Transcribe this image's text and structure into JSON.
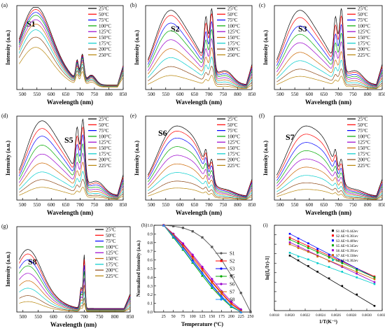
{
  "figure": {
    "panels": [
      {
        "letter": "(a)",
        "name": "S1",
        "temps": [
          "25°C",
          "50°C",
          "75°C",
          "100°C",
          "125°C",
          "150°C",
          "175°C",
          "200°C",
          "250°C"
        ]
      },
      {
        "letter": "(b)",
        "name": "S2",
        "temps": [
          "25°C",
          "50°C",
          "75°C",
          "100°C",
          "125°C",
          "150°C",
          "175°C",
          "200°C",
          "250°C"
        ]
      },
      {
        "letter": "(c)",
        "name": "S3",
        "temps": [
          "25°C",
          "50°C",
          "75°C",
          "100°C",
          "125°C",
          "150°C",
          "175°C",
          "200°C",
          "225°C"
        ]
      },
      {
        "letter": "(d)",
        "name": "S5",
        "temps": [
          "25°C",
          "50°C",
          "75°C",
          "100°C",
          "125°C",
          "150°C",
          "175°C",
          "200°C",
          "225°C"
        ]
      },
      {
        "letter": "(e)",
        "name": "S6",
        "temps": [
          "25°C",
          "50°C",
          "75°C",
          "100°C",
          "125°C",
          "150°C",
          "175°C",
          "200°C",
          "225°C"
        ]
      },
      {
        "letter": "(f)",
        "name": "S7",
        "temps": [
          "25°C",
          "50°C",
          "75°C",
          "100°C",
          "125°C",
          "150°C",
          "175°C",
          "200°C",
          "225°C"
        ]
      },
      {
        "letter": "(g)",
        "name": "S8",
        "temps": [
          "25°C",
          "50°C",
          "75°C",
          "100°C",
          "125°C",
          "150°C",
          "175°C",
          "200°C",
          "225°C"
        ]
      }
    ],
    "temp_colors": [
      "#000000",
      "#ff0000",
      "#0000ff",
      "#00aa00",
      "#9900cc",
      "#cc6600",
      "#00cccc",
      "#8b4513",
      "#b8860b"
    ]
  },
  "chart_data": [
    {
      "type": "line",
      "panel": "(a)",
      "title": "S1",
      "xlabel": "Wavelength (nm)",
      "ylabel": "Intensity (a.u.)",
      "xlim": [
        480,
        850
      ],
      "xticks": [
        500,
        550,
        600,
        650,
        700,
        750,
        800,
        850
      ],
      "series": [
        {
          "name": "25°C",
          "peak": 0.57
        },
        {
          "name": "50°C",
          "peak": 0.55
        },
        {
          "name": "75°C",
          "peak": 0.53
        },
        {
          "name": "100°C",
          "peak": 0.51
        },
        {
          "name": "125°C",
          "peak": 0.48
        },
        {
          "name": "150°C",
          "peak": 0.45
        },
        {
          "name": "175°C",
          "peak": 0.41
        },
        {
          "name": "200°C",
          "peak": 0.36
        },
        {
          "name": "250°C",
          "peak": 0.29
        }
      ]
    },
    {
      "type": "line",
      "panel": "(b)",
      "title": "S2",
      "xlabel": "Wavelength (nm)",
      "ylabel": "Intensity (a.u.)",
      "xlim": [
        480,
        850
      ],
      "xticks": [
        500,
        550,
        600,
        650,
        700,
        750,
        800,
        850
      ],
      "series": [
        {
          "name": "25°C",
          "peak": 0.62
        },
        {
          "name": "50°C",
          "peak": 0.58
        },
        {
          "name": "75°C",
          "peak": 0.52
        },
        {
          "name": "100°C",
          "peak": 0.46
        },
        {
          "name": "125°C",
          "peak": 0.39
        },
        {
          "name": "150°C",
          "peak": 0.32
        },
        {
          "name": "175°C",
          "peak": 0.25
        },
        {
          "name": "200°C",
          "peak": 0.18
        },
        {
          "name": "250°C",
          "peak": 0.11
        }
      ]
    },
    {
      "type": "line",
      "panel": "(c)",
      "title": "S3",
      "xlabel": "Wavelength (nm)",
      "ylabel": "Intensity (a.u.)",
      "xlim": [
        480,
        850
      ],
      "xticks": [
        500,
        550,
        600,
        650,
        700,
        750,
        800,
        850
      ],
      "series": [
        {
          "name": "25°C",
          "peak": 0.66
        },
        {
          "name": "50°C",
          "peak": 0.6
        },
        {
          "name": "75°C",
          "peak": 0.53
        },
        {
          "name": "100°C",
          "peak": 0.46
        },
        {
          "name": "125°C",
          "peak": 0.39
        },
        {
          "name": "150°C",
          "peak": 0.31
        },
        {
          "name": "175°C",
          "peak": 0.24
        },
        {
          "name": "200°C",
          "peak": 0.17
        },
        {
          "name": "225°C",
          "peak": 0.11
        }
      ]
    },
    {
      "type": "line",
      "panel": "(d)",
      "title": "S5",
      "xlabel": "Wavelength (nm)",
      "ylabel": "Intensity (a.u.)",
      "xlim": [
        480,
        850
      ],
      "xticks": [
        500,
        550,
        600,
        650,
        700,
        750,
        800,
        850
      ],
      "series": [
        {
          "name": "25°C",
          "peak": 0.62
        },
        {
          "name": "50°C",
          "peak": 0.56
        },
        {
          "name": "75°C",
          "peak": 0.5
        },
        {
          "name": "100°C",
          "peak": 0.43
        },
        {
          "name": "125°C",
          "peak": 0.36
        },
        {
          "name": "150°C",
          "peak": 0.29
        },
        {
          "name": "175°C",
          "peak": 0.22
        },
        {
          "name": "200°C",
          "peak": 0.16
        },
        {
          "name": "225°C",
          "peak": 0.1
        }
      ]
    },
    {
      "type": "line",
      "panel": "(e)",
      "title": "S6",
      "xlabel": "Wavelength (nm)",
      "ylabel": "Intensity (a.u.)",
      "xlim": [
        480,
        850
      ],
      "xticks": [
        500,
        550,
        600,
        650,
        700,
        750,
        800,
        850
      ],
      "series": [
        {
          "name": "25°C",
          "peak": 0.86
        },
        {
          "name": "50°C",
          "peak": 0.8
        },
        {
          "name": "75°C",
          "peak": 0.72
        },
        {
          "name": "100°C",
          "peak": 0.62
        },
        {
          "name": "125°C",
          "peak": 0.52
        },
        {
          "name": "150°C",
          "peak": 0.42
        },
        {
          "name": "175°C",
          "peak": 0.32
        },
        {
          "name": "200°C",
          "peak": 0.22
        },
        {
          "name": "225°C",
          "peak": 0.14
        }
      ]
    },
    {
      "type": "line",
      "panel": "(f)",
      "title": "S7",
      "xlabel": "Wavelength (nm)",
      "ylabel": "Intensity (a.u.)",
      "xlim": [
        480,
        850
      ],
      "xticks": [
        500,
        550,
        600,
        650,
        700,
        750,
        800,
        850
      ],
      "series": [
        {
          "name": "25°C",
          "peak": 0.9
        },
        {
          "name": "50°C",
          "peak": 0.8
        },
        {
          "name": "75°C",
          "peak": 0.7
        },
        {
          "name": "100°C",
          "peak": 0.6
        },
        {
          "name": "125°C",
          "peak": 0.5
        },
        {
          "name": "150°C",
          "peak": 0.4
        },
        {
          "name": "175°C",
          "peak": 0.3
        },
        {
          "name": "200°C",
          "peak": 0.21
        },
        {
          "name": "225°C",
          "peak": 0.13
        }
      ]
    },
    {
      "type": "line",
      "panel": "(g)",
      "title": "S8",
      "xlabel": "Wavelength (nm)",
      "ylabel": "Intensity (a.u.)",
      "xlim": [
        480,
        850
      ],
      "xticks": [
        500,
        550,
        600,
        650,
        700,
        750,
        800,
        850
      ],
      "series": [
        {
          "name": "25°C",
          "peak": 0.42
        },
        {
          "name": "50°C",
          "peak": 0.39
        },
        {
          "name": "75°C",
          "peak": 0.35
        },
        {
          "name": "100°C",
          "peak": 0.31
        },
        {
          "name": "125°C",
          "peak": 0.26
        },
        {
          "name": "150°C",
          "peak": 0.21
        },
        {
          "name": "175°C",
          "peak": 0.16
        },
        {
          "name": "200°C",
          "peak": 0.11
        },
        {
          "name": "225°C",
          "peak": 0.07
        }
      ]
    },
    {
      "type": "line",
      "panel": "(h)",
      "xlabel": "Temperature (ºC)",
      "ylabel": "Normalized Intensity (a.u.)",
      "xlim": [
        0,
        250
      ],
      "ylim": [
        0,
        1
      ],
      "xticks": [
        25,
        50,
        75,
        100,
        125,
        150,
        175,
        200,
        225,
        250
      ],
      "yticks": [
        0,
        0.1,
        0.2,
        0.3,
        0.4,
        0.5,
        0.6,
        0.7,
        0.8,
        0.9,
        1.0
      ],
      "x": [
        25,
        50,
        75,
        100,
        125,
        150,
        175,
        200,
        225,
        250
      ],
      "series": [
        {
          "name": "S1",
          "color": "#555555",
          "marker": "square",
          "values": [
            1.0,
            0.99,
            0.97,
            0.93,
            0.86,
            0.75,
            0.6,
            0.42,
            0.22,
            0.0
          ]
        },
        {
          "name": "S2",
          "color": "#ff0000",
          "marker": "circle",
          "values": [
            1.0,
            0.9,
            0.78,
            0.64,
            0.5,
            0.35,
            0.22,
            0.1,
            0.02,
            null
          ]
        },
        {
          "name": "S3",
          "color": "#0000ff",
          "marker": "triangle",
          "values": [
            1.0,
            0.88,
            0.75,
            0.6,
            0.45,
            0.31,
            0.18,
            0.07,
            0.0,
            null
          ]
        },
        {
          "name": "S5",
          "color": "#00aa00",
          "marker": "triangle-down",
          "values": [
            1.0,
            0.86,
            0.72,
            0.57,
            0.42,
            0.28,
            0.16,
            0.06,
            0.0,
            null
          ]
        },
        {
          "name": "S6",
          "color": "#9900cc",
          "marker": "diamond",
          "values": [
            1.0,
            0.9,
            0.79,
            0.66,
            0.52,
            0.38,
            0.24,
            0.12,
            0.03,
            null
          ]
        },
        {
          "name": "S7",
          "color": "#cc6600",
          "marker": "triangle-left",
          "values": [
            1.0,
            0.89,
            0.76,
            0.62,
            0.48,
            0.34,
            0.21,
            0.09,
            0.01,
            null
          ]
        },
        {
          "name": "S8",
          "color": "#1e90ff",
          "marker": "triangle-right",
          "values": [
            1.0,
            0.87,
            0.73,
            0.58,
            0.44,
            0.3,
            0.17,
            0.07,
            0.0,
            null
          ]
        }
      ]
    },
    {
      "type": "scatter",
      "panel": "(i)",
      "xlabel": "1/T(K⁻¹)",
      "ylabel": "ln[(I₀/Iᴛ)-1]",
      "xlim": [
        0.0018,
        0.0032
      ],
      "xticks": [
        0.0018,
        0.002,
        0.0022,
        0.0024,
        0.0026,
        0.0028,
        0.003,
        0.0032
      ],
      "ylim": [
        -6,
        3
      ],
      "yticks": [
        -6,
        -5,
        -4,
        -3,
        -2,
        -1,
        0,
        1,
        2,
        3
      ],
      "x": [
        0.002,
        0.00211,
        0.00224,
        0.00236,
        0.00251,
        0.00268,
        0.00287,
        0.0031
      ],
      "series": [
        {
          "name": "S1 ΔE=0.442ev",
          "color": "#000000",
          "values": [
            -0.2,
            -0.7,
            -1.3,
            -1.9,
            -2.6,
            -3.4,
            -4.3,
            -5.5
          ]
        },
        {
          "name": "S2 ΔE=0.361ev",
          "color": "#ff0000",
          "values": [
            1.7,
            1.3,
            0.8,
            0.3,
            -0.3,
            -0.9,
            -1.6,
            -2.4
          ]
        },
        {
          "name": "S3 ΔE=0.409ev",
          "color": "#0000ff",
          "values": [
            2.1,
            1.6,
            1.1,
            0.5,
            -0.1,
            -0.8,
            -1.6,
            -2.5
          ]
        },
        {
          "name": "S5 ΔE=0.345ev",
          "color": "#00aa00",
          "values": [
            1.5,
            1.1,
            0.6,
            0.1,
            -0.4,
            -1.0,
            -1.7,
            -2.5
          ]
        },
        {
          "name": "S6 ΔE=0.391ev",
          "color": "#9900cc",
          "values": [
            1.2,
            0.8,
            0.3,
            -0.2,
            -0.8,
            -1.4,
            -2.1,
            -3.0
          ]
        },
        {
          "name": "S7 ΔE=0.338ev",
          "color": "#cc6600",
          "values": [
            1.0,
            0.6,
            0.2,
            -0.3,
            -0.8,
            -1.3,
            -1.9,
            -2.7
          ]
        },
        {
          "name": "S8 ΔE=0.302ev",
          "color": "#00cccc",
          "values": [
            0.1,
            -0.3,
            -0.6,
            -1.0,
            -1.4,
            -1.9,
            -2.5,
            -3.2
          ]
        }
      ]
    }
  ]
}
